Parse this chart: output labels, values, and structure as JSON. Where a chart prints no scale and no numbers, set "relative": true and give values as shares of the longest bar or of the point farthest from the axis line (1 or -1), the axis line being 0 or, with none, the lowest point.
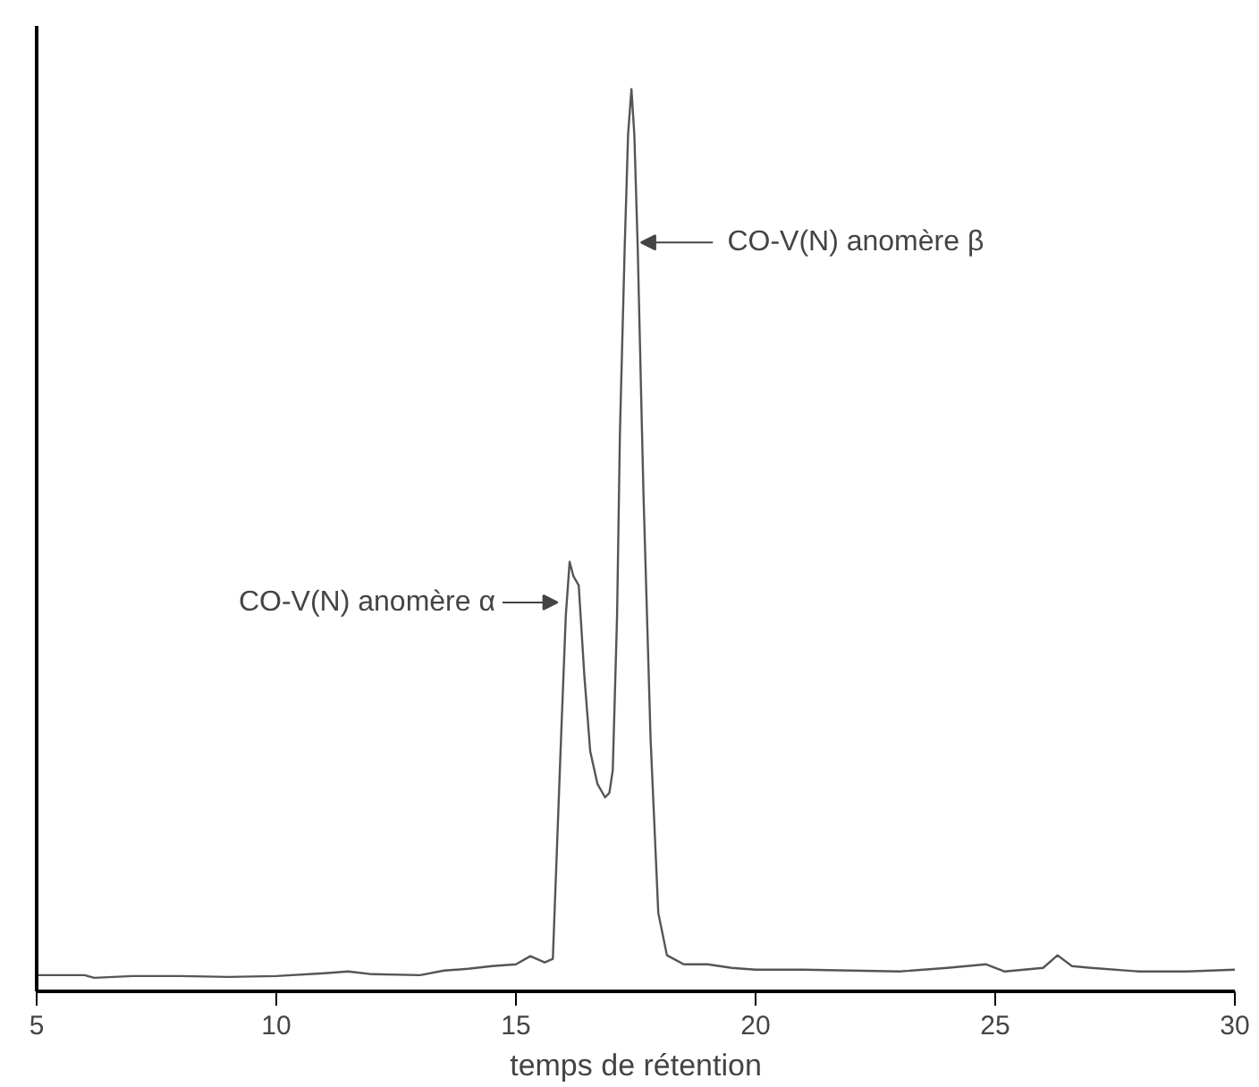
{
  "chart_data": {
    "type": "line",
    "relative": true,
    "xlabel": "temps de rétention",
    "xlim": [
      5,
      30
    ],
    "xticks": [
      5,
      10,
      15,
      20,
      25,
      30
    ],
    "grid": false,
    "line_style": "solid",
    "marker": "none",
    "series": [
      {
        "color": "#555555",
        "x": [
          5,
          6,
          6.2,
          7,
          8,
          9,
          10,
          11,
          11.5,
          12,
          13,
          13.5,
          14,
          14.5,
          15,
          15.3,
          15.6,
          15.77,
          15.94,
          16.04,
          16.12,
          16.2,
          16.31,
          16.43,
          16.55,
          16.7,
          16.86,
          16.95,
          17.02,
          17.11,
          17.17,
          17.27,
          17.34,
          17.41,
          17.47,
          17.54,
          17.66,
          17.81,
          17.97,
          18.15,
          18.5,
          19,
          19.5,
          20,
          21,
          22,
          23,
          24,
          24.8,
          25.2,
          26,
          26.3,
          26.6,
          27,
          28,
          29,
          30
        ],
        "values": [
          0.018,
          0.018,
          0.015,
          0.017,
          0.017,
          0.016,
          0.017,
          0.02,
          0.022,
          0.019,
          0.018,
          0.023,
          0.025,
          0.028,
          0.03,
          0.039,
          0.032,
          0.036,
          0.279,
          0.416,
          0.476,
          0.46,
          0.45,
          0.348,
          0.266,
          0.23,
          0.215,
          0.22,
          0.245,
          0.416,
          0.62,
          0.826,
          0.95,
          1.0,
          0.95,
          0.826,
          0.553,
          0.279,
          0.087,
          0.04,
          0.03,
          0.03,
          0.026,
          0.024,
          0.024,
          0.023,
          0.022,
          0.026,
          0.03,
          0.022,
          0.026,
          0.04,
          0.028,
          0.026,
          0.022,
          0.022,
          0.024
        ]
      }
    ],
    "annotations": [
      {
        "text": "CO-V(N) anomère α",
        "x": 16.12,
        "y": 0.476
      },
      {
        "text": "CO-V(N) anomère β",
        "x": 17.41,
        "y": 0.83
      }
    ]
  }
}
